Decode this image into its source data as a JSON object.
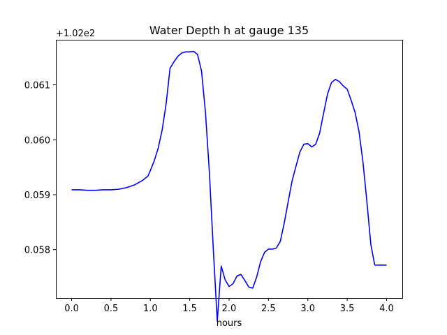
{
  "chart_data": {
    "type": "line",
    "title": "Water Depth h at gauge 135",
    "xlabel": "hours",
    "ylabel": "",
    "y_offset_label": "+1.02e2",
    "y_offset": 102,
    "xlim": [
      -0.2,
      4.2
    ],
    "ylim": [
      0.05712,
      0.06182
    ],
    "x_ticks": [
      0.0,
      0.5,
      1.0,
      1.5,
      2.0,
      2.5,
      3.0,
      3.5,
      4.0
    ],
    "x_tick_labels": [
      "0.0",
      "0.5",
      "1.0",
      "1.5",
      "2.0",
      "2.5",
      "3.0",
      "3.5",
      "4.0"
    ],
    "y_ticks": [
      0.058,
      0.059,
      0.06,
      0.061
    ],
    "y_tick_labels": [
      "0.058",
      "0.059",
      "0.060",
      "0.061"
    ],
    "grid": false,
    "series": [
      {
        "color": "#0000ff",
        "x": [
          0.0,
          0.1,
          0.2,
          0.3,
          0.4,
          0.5,
          0.6,
          0.7,
          0.8,
          0.9,
          0.97,
          1.0,
          1.05,
          1.1,
          1.15,
          1.2,
          1.25,
          1.3,
          1.35,
          1.4,
          1.45,
          1.5,
          1.55,
          1.6,
          1.65,
          1.7,
          1.75,
          1.8,
          1.85,
          1.9,
          1.95,
          2.0,
          2.05,
          2.1,
          2.15,
          2.2,
          2.25,
          2.3,
          2.35,
          2.4,
          2.45,
          2.5,
          2.55,
          2.6,
          2.65,
          2.7,
          2.75,
          2.8,
          2.85,
          2.9,
          2.95,
          3.0,
          3.05,
          3.1,
          3.15,
          3.2,
          3.25,
          3.3,
          3.35,
          3.4,
          3.45,
          3.5,
          3.55,
          3.6,
          3.65,
          3.7,
          3.75,
          3.8,
          3.85,
          3.9,
          3.95,
          4.0
        ],
        "y": [
          0.05909,
          0.05909,
          0.05908,
          0.05908,
          0.05909,
          0.05909,
          0.0591,
          0.05913,
          0.05918,
          0.05926,
          0.05934,
          0.05944,
          0.05962,
          0.05985,
          0.06018,
          0.06065,
          0.0613,
          0.06142,
          0.06152,
          0.06158,
          0.0616,
          0.0616,
          0.06161,
          0.06155,
          0.06125,
          0.0605,
          0.0594,
          0.058,
          0.0567,
          0.0577,
          0.05745,
          0.05733,
          0.05738,
          0.05752,
          0.05755,
          0.05744,
          0.05732,
          0.0573,
          0.0575,
          0.05778,
          0.05795,
          0.05801,
          0.05801,
          0.05803,
          0.05815,
          0.05848,
          0.05887,
          0.05925,
          0.05952,
          0.05978,
          0.05992,
          0.05993,
          0.05987,
          0.05992,
          0.06012,
          0.06048,
          0.06083,
          0.06104,
          0.0611,
          0.06106,
          0.06098,
          0.06092,
          0.06072,
          0.0605,
          0.06015,
          0.0596,
          0.05888,
          0.0581,
          0.05772,
          0.05772,
          0.05772,
          0.05772
        ]
      }
    ]
  }
}
